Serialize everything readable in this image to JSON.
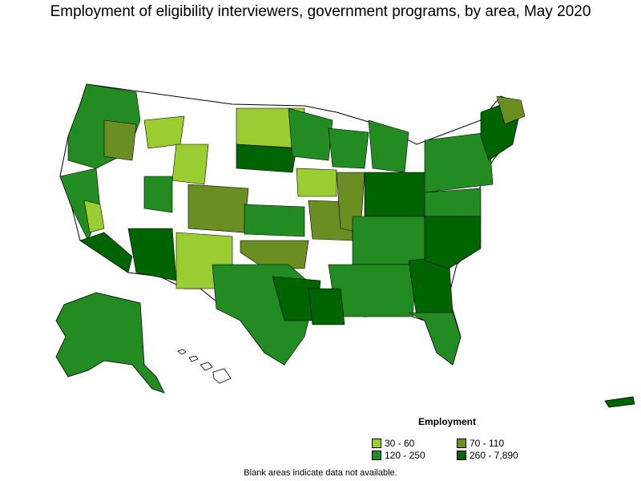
{
  "title": "Employment of eligibility interviewers, government programs, by area, May 2020",
  "legend": {
    "title": "Employment",
    "items": [
      {
        "label": "30 - 60",
        "color": "#9acd32"
      },
      {
        "label": "70 - 110",
        "color": "#6b8e23"
      },
      {
        "label": "120 - 250",
        "color": "#228b22"
      },
      {
        "label": "260 - 7,890",
        "color": "#006400"
      }
    ]
  },
  "footnote": "Blank areas indicate data not available.",
  "colors": {
    "blank": "#ffffff",
    "border": "#000000"
  }
}
